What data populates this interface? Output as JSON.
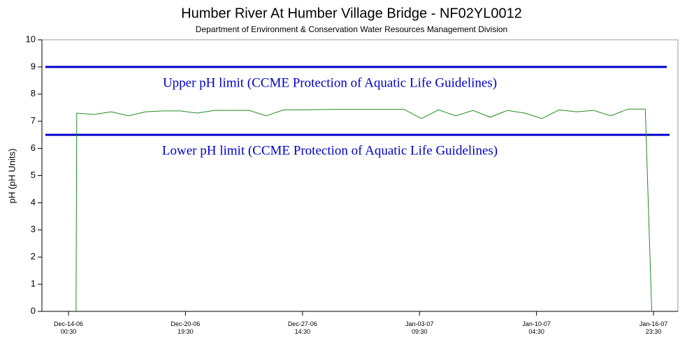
{
  "chart_data": {
    "type": "line",
    "title": "Humber River At Humber Village Bridge - NF02YL0012",
    "subtitle": "Department of Environment & Conservation Water Resources Management Division",
    "ylabel": "pH (pH Units)",
    "x": [
      "2006-12-14T11:00",
      "2006-12-14T12:00",
      "2006-12-15T12:00",
      "2006-12-16T12:00",
      "2006-12-17T12:00",
      "2006-12-18T12:00",
      "2006-12-19T12:00",
      "2006-12-20T12:00",
      "2006-12-21T12:00",
      "2006-12-22T12:00",
      "2006-12-23T12:00",
      "2006-12-24T12:00",
      "2006-12-25T12:00",
      "2006-12-26T12:00",
      "2006-12-27T12:00",
      "2006-12-28T12:00",
      "2006-12-29T12:00",
      "2006-12-30T12:00",
      "2006-12-31T12:00",
      "2007-01-01T12:00",
      "2007-01-02T12:00",
      "2007-01-03T12:00",
      "2007-01-04T12:00",
      "2007-01-05T12:00",
      "2007-01-06T12:00",
      "2007-01-07T12:00",
      "2007-01-08T12:00",
      "2007-01-09T12:00",
      "2007-01-10T12:00",
      "2007-01-11T12:00",
      "2007-01-12T12:00",
      "2007-01-13T12:00",
      "2007-01-14T12:00",
      "2007-01-15T12:00",
      "2007-01-16T12:00",
      "2007-01-16T21:00"
    ],
    "series": [
      {
        "name": "pH",
        "color": "#228b22",
        "values": [
          0,
          7.3,
          7.25,
          7.35,
          7.2,
          7.35,
          7.38,
          7.38,
          7.3,
          7.4,
          7.4,
          7.4,
          7.2,
          7.42,
          7.42,
          7.43,
          7.44,
          7.44,
          7.44,
          7.44,
          7.44,
          7.1,
          7.42,
          7.2,
          7.4,
          7.15,
          7.4,
          7.3,
          7.1,
          7.42,
          7.35,
          7.4,
          7.2,
          7.45,
          7.45,
          0
        ]
      }
    ],
    "reference_lines": [
      {
        "value": 9,
        "color": "#0000cc",
        "label": "Upper pH limit (CCME Protection of Aquatic Life Guidelines)"
      },
      {
        "value": 6.5,
        "color": "#0000cc",
        "label": "Lower pH limit (CCME Protection of Aquatic Life Guidelines)"
      }
    ],
    "xlim": [
      "2006-12-12T11:30",
      "2007-01-18T09:30"
    ],
    "xticks": [
      {
        "value": "2006-12-14T00:30",
        "label": "Dec-14-06 00:30"
      },
      {
        "value": "2006-12-20T19:30",
        "label": "Dec-20-06 19:30"
      },
      {
        "value": "2006-12-27T14:30",
        "label": "Dec-27-06 14:30"
      },
      {
        "value": "2007-01-03T09:30",
        "label": "Jan-03-07 09:30"
      },
      {
        "value": "2007-01-10T04:30",
        "label": "Jan-10-07 04:30"
      },
      {
        "value": "2007-01-16T23:30",
        "label": "Jan-16-07 23:30"
      }
    ],
    "ylim": [
      0,
      10
    ],
    "yticks": [
      0,
      1,
      2,
      3,
      4,
      5,
      6,
      7,
      8,
      9,
      10
    ]
  }
}
